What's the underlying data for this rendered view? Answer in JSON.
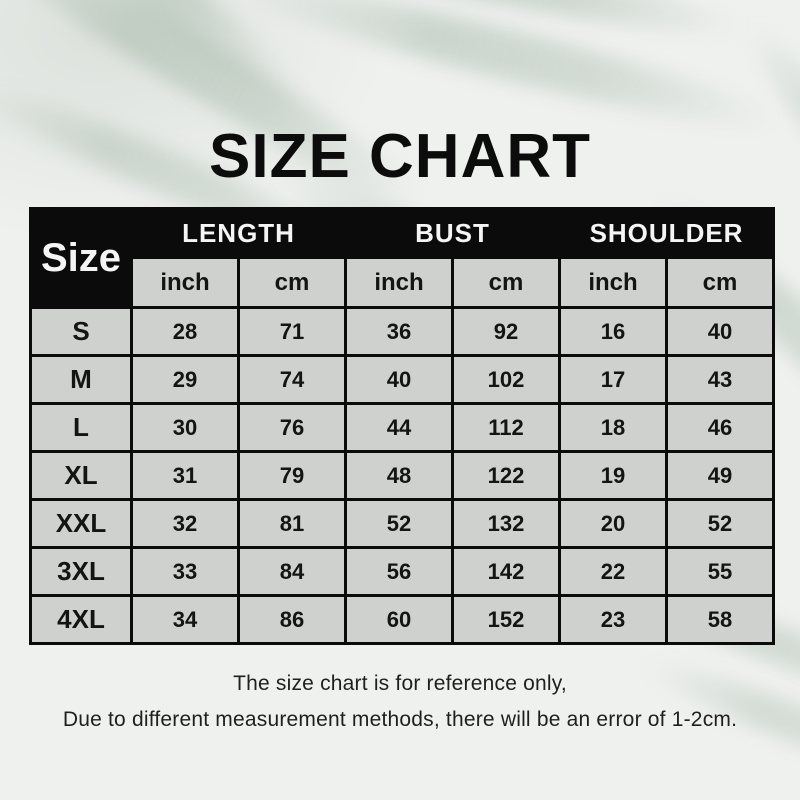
{
  "title": "SIZE CHART",
  "table": {
    "corner_label": "Size",
    "groups": [
      {
        "label": "LENGTH"
      },
      {
        "label": "BUST"
      },
      {
        "label": "SHOULDER"
      }
    ],
    "unit_headers": [
      "inch",
      "cm",
      "inch",
      "cm",
      "inch",
      "cm"
    ],
    "rows": [
      {
        "size": "S",
        "values": [
          28,
          71,
          36,
          92,
          16,
          40
        ]
      },
      {
        "size": "M",
        "values": [
          29,
          74,
          40,
          102,
          17,
          43
        ]
      },
      {
        "size": "L",
        "values": [
          30,
          76,
          44,
          112,
          18,
          46
        ]
      },
      {
        "size": "XL",
        "values": [
          31,
          79,
          48,
          122,
          19,
          49
        ]
      },
      {
        "size": "XXL",
        "values": [
          32,
          81,
          52,
          132,
          20,
          52
        ]
      },
      {
        "size": "3XL",
        "values": [
          33,
          84,
          56,
          142,
          22,
          55
        ]
      },
      {
        "size": "4XL",
        "values": [
          34,
          86,
          60,
          152,
          23,
          58
        ]
      }
    ]
  },
  "footer": {
    "line1": "The size chart is for reference only,",
    "line2": "Due to different measurement methods, there will be an error of 1-2cm."
  },
  "colors": {
    "page_background": "#eff1ef",
    "leaf_shadow": "#a8baab",
    "header_black": "#0b0b0b",
    "header_text": "#f5f5f5",
    "cell_background": "#ebedeb",
    "text": "#141414"
  },
  "chart_data": {
    "type": "table",
    "title": "SIZE CHART",
    "columns": [
      "Size",
      "LENGTH inch",
      "LENGTH cm",
      "BUST inch",
      "BUST cm",
      "SHOULDER inch",
      "SHOULDER cm"
    ],
    "rows": [
      [
        "S",
        28,
        71,
        36,
        92,
        16,
        40
      ],
      [
        "M",
        29,
        74,
        40,
        102,
        17,
        43
      ],
      [
        "L",
        30,
        76,
        44,
        112,
        18,
        46
      ],
      [
        "XL",
        31,
        79,
        48,
        122,
        19,
        49
      ],
      [
        "XXL",
        32,
        81,
        52,
        132,
        20,
        52
      ],
      [
        "3XL",
        33,
        84,
        56,
        142,
        22,
        55
      ],
      [
        "4XL",
        34,
        86,
        60,
        152,
        23,
        58
      ]
    ],
    "notes": [
      "The size chart is for reference only,",
      "Due to different measurement methods, there will be an error of 1-2cm."
    ]
  }
}
